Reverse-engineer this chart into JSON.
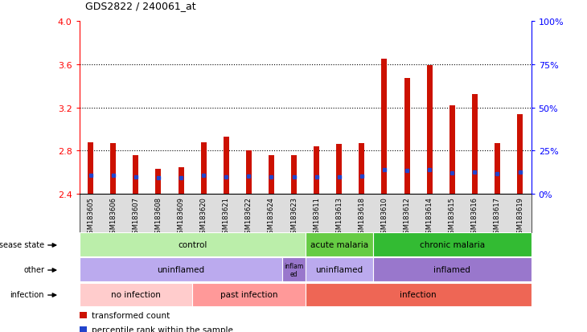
{
  "title": "GDS2822 / 240061_at",
  "samples": [
    "GSM183605",
    "GSM183606",
    "GSM183607",
    "GSM183608",
    "GSM183609",
    "GSM183620",
    "GSM183621",
    "GSM183622",
    "GSM183624",
    "GSM183623",
    "GSM183611",
    "GSM183613",
    "GSM183618",
    "GSM183610",
    "GSM183612",
    "GSM183614",
    "GSM183615",
    "GSM183616",
    "GSM183617",
    "GSM183619"
  ],
  "bar_heights": [
    2.88,
    2.87,
    2.76,
    2.63,
    2.65,
    2.88,
    2.93,
    2.8,
    2.76,
    2.76,
    2.84,
    2.86,
    2.87,
    3.65,
    3.47,
    3.59,
    3.22,
    3.32,
    2.87,
    3.14
  ],
  "blue_positions": [
    2.575,
    2.575,
    2.555,
    2.55,
    2.55,
    2.575,
    2.555,
    2.565,
    2.56,
    2.555,
    2.555,
    2.555,
    2.565,
    2.625,
    2.615,
    2.625,
    2.595,
    2.605,
    2.585,
    2.6
  ],
  "ymin": 2.4,
  "ymax": 4.0,
  "yticks_left": [
    2.4,
    2.8,
    3.2,
    3.6,
    4.0
  ],
  "yticks_right_vals": [
    0,
    25,
    50,
    75,
    100
  ],
  "bar_color": "#CC1100",
  "blue_color": "#2244CC",
  "grid_lines": [
    2.8,
    3.2,
    3.6
  ],
  "annotation_rows": [
    {
      "label": "disease state",
      "segments": [
        {
          "text": "control",
          "start": 0,
          "end": 10,
          "color": "#BBEEAA"
        },
        {
          "text": "acute malaria",
          "start": 10,
          "end": 13,
          "color": "#66CC44"
        },
        {
          "text": "chronic malaria",
          "start": 13,
          "end": 20,
          "color": "#33BB33"
        }
      ]
    },
    {
      "label": "other",
      "segments": [
        {
          "text": "uninflamed",
          "start": 0,
          "end": 9,
          "color": "#BBAAEE"
        },
        {
          "text": "inflam\ned",
          "start": 9,
          "end": 10,
          "color": "#9977CC"
        },
        {
          "text": "uninflamed",
          "start": 10,
          "end": 13,
          "color": "#BBAAEE"
        },
        {
          "text": "inflamed",
          "start": 13,
          "end": 20,
          "color": "#9977CC"
        }
      ]
    },
    {
      "label": "infection",
      "segments": [
        {
          "text": "no infection",
          "start": 0,
          "end": 5,
          "color": "#FFCCCC"
        },
        {
          "text": "past infection",
          "start": 5,
          "end": 10,
          "color": "#FF9999"
        },
        {
          "text": "infection",
          "start": 10,
          "end": 20,
          "color": "#EE6655"
        }
      ]
    }
  ],
  "legend_items": [
    {
      "color": "#CC1100",
      "label": "transformed count"
    },
    {
      "color": "#2244CC",
      "label": "percentile rank within the sample"
    }
  ]
}
